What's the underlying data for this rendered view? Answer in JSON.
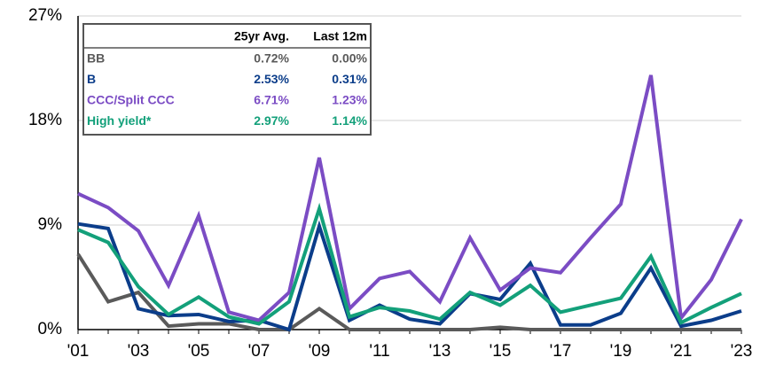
{
  "chart_data": {
    "type": "line",
    "categories": [
      "'01",
      null,
      "'03",
      null,
      "'05",
      null,
      "'07",
      null,
      "'09",
      null,
      "'11",
      null,
      "'13",
      null,
      "'15",
      null,
      "'17",
      null,
      "'19",
      null,
      "'21",
      null,
      "'23"
    ],
    "ylim": [
      0,
      27
    ],
    "yticks": [
      {
        "value": 0,
        "label": "0%"
      },
      {
        "value": 9,
        "label": "9%"
      },
      {
        "value": 18,
        "label": "18%"
      },
      {
        "value": 27,
        "label": "27%"
      }
    ],
    "grid": true,
    "series": [
      {
        "name": "BB",
        "color": "#5a5a5a",
        "values": [
          6.5,
          2.4,
          3.2,
          0.3,
          0.5,
          0.5,
          0,
          0,
          1.8,
          0,
          0,
          0,
          0,
          0,
          0.2,
          0,
          0,
          0,
          0,
          0,
          0,
          0,
          0
        ]
      },
      {
        "name": "B",
        "color": "#0b3d8a",
        "values": [
          9.1,
          8.7,
          1.8,
          1.2,
          1.3,
          0.7,
          0.8,
          0,
          8.9,
          0.8,
          2.1,
          0.9,
          0.5,
          3.1,
          2.6,
          5.7,
          0.4,
          0.4,
          1.4,
          5.3,
          0.3,
          0.8,
          1.6
        ]
      },
      {
        "name": "CCC/Split CCC",
        "color": "#7b4cc4",
        "values": [
          11.7,
          10.5,
          8.5,
          3.8,
          9.8,
          1.5,
          0.8,
          3.2,
          14.8,
          1.8,
          4.4,
          5.0,
          2.4,
          7.9,
          3.4,
          5.3,
          4.9,
          7.9,
          10.8,
          21.9,
          1.0,
          4.3,
          9.5
        ]
      },
      {
        "name": "High yield*",
        "color": "#13a07a",
        "values": [
          8.6,
          7.5,
          3.7,
          1.3,
          2.8,
          1.1,
          0.5,
          2.4,
          10.4,
          1.1,
          1.9,
          1.6,
          0.9,
          3.2,
          2.1,
          3.8,
          1.5,
          2.1,
          2.7,
          6.3,
          0.6,
          1.9,
          3.1
        ]
      }
    ],
    "table": {
      "columns": [
        "25yr Avg.",
        "Last 12m"
      ],
      "rows": [
        [
          "0.72%",
          "0.00%"
        ],
        [
          "2.53%",
          "0.31%"
        ],
        [
          "6.71%",
          "1.23%"
        ],
        [
          "2.97%",
          "1.14%"
        ]
      ]
    }
  }
}
